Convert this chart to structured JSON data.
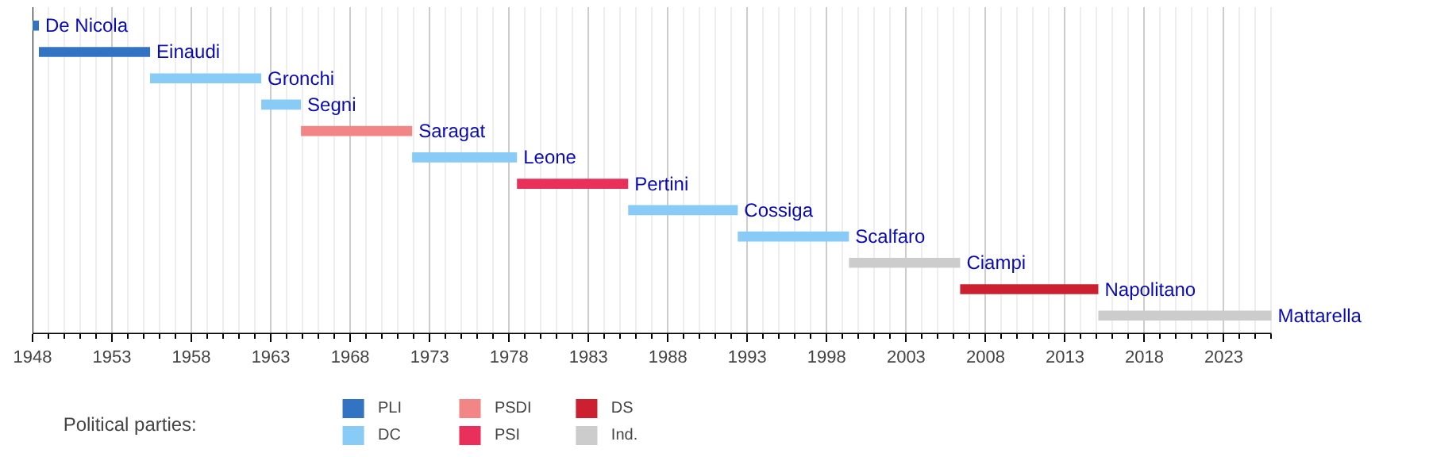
{
  "chart_data": {
    "type": "bar",
    "orientation": "horizontal",
    "categories": [
      "De Nicola",
      "Einaudi",
      "Gronchi",
      "Segni",
      "Saragat",
      "Leone",
      "Pertini",
      "Cossiga",
      "Scalfaro",
      "Ciampi",
      "Napolitano",
      "Mattarella"
    ],
    "series": [
      {
        "name": "PLI",
        "color": "#3373c4",
        "base": [
          1948,
          1948.4,
          null,
          null,
          null,
          null,
          null,
          null,
          null,
          null,
          null,
          null
        ],
        "values": [
          0.4,
          7.0,
          null,
          null,
          null,
          null,
          null,
          null,
          null,
          null,
          null,
          null
        ]
      },
      {
        "name": "DC",
        "color": "#88cbf7",
        "base": [
          null,
          null,
          1955.4,
          1962.4,
          null,
          1971.9,
          null,
          1985.5,
          1992.4,
          null,
          null,
          null
        ],
        "values": [
          null,
          null,
          7.0,
          2.5,
          null,
          6.6,
          null,
          6.9,
          7.0,
          null,
          null,
          null
        ]
      },
      {
        "name": "PSDI",
        "color": "#f28686",
        "base": [
          null,
          null,
          null,
          null,
          1964.9,
          null,
          null,
          null,
          null,
          null,
          null,
          null
        ],
        "values": [
          null,
          null,
          null,
          null,
          7.0,
          null,
          null,
          null,
          null,
          null,
          null,
          null
        ]
      },
      {
        "name": "PSI",
        "color": "#e8305a",
        "base": [
          null,
          null,
          null,
          null,
          null,
          null,
          1978.5,
          null,
          null,
          null,
          null,
          null
        ],
        "values": [
          null,
          null,
          null,
          null,
          null,
          null,
          7.0,
          null,
          null,
          null,
          null,
          null
        ]
      },
      {
        "name": "DS",
        "color": "#cc1f2f",
        "base": [
          null,
          null,
          null,
          null,
          null,
          null,
          null,
          null,
          null,
          null,
          2006.4,
          null
        ],
        "values": [
          null,
          null,
          null,
          null,
          null,
          null,
          null,
          null,
          null,
          null,
          8.7,
          null
        ]
      },
      {
        "name": "Ind.",
        "color": "#cccccc",
        "base": [
          null,
          null,
          null,
          null,
          null,
          null,
          null,
          null,
          null,
          1999.4,
          null,
          2015.1
        ],
        "values": [
          null,
          null,
          null,
          null,
          null,
          null,
          null,
          null,
          null,
          7.0,
          null,
          10.9
        ]
      }
    ],
    "legend_title": "Political parties:",
    "legend": "bottom",
    "xlim": [
      1948,
      2026
    ],
    "xticks": [
      1948,
      1953,
      1958,
      1963,
      1968,
      1973,
      1978,
      1983,
      1988,
      1993,
      1998,
      2003,
      2008,
      2013,
      2018,
      2023
    ],
    "grid": "x"
  }
}
